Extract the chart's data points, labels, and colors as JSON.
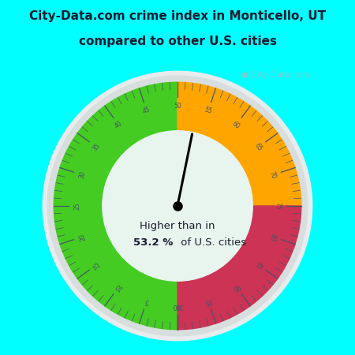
{
  "title_line1": "City-Data.com crime index in Monticello, UT",
  "title_line2": "compared to other U.S. cities",
  "title_color": "#1a1a2e",
  "background_color": "#00FFFF",
  "gauge_inner_color": "#e8f5ee",
  "gauge_outer_ring_color": "#d8dede",
  "gauge_outer_ring2_color": "#e8ecec",
  "green_color": "#44cc22",
  "orange_color": "#FFA500",
  "red_color": "#cc3355",
  "needle_value": 53.2,
  "text_line1": "Higher than in",
  "text_bold": "53.2 %",
  "text_line3": "of U.S. cities",
  "watermark": "City-Data.com",
  "green_range": [
    0,
    50
  ],
  "orange_range": [
    50,
    75
  ],
  "red_range": [
    75,
    100
  ]
}
